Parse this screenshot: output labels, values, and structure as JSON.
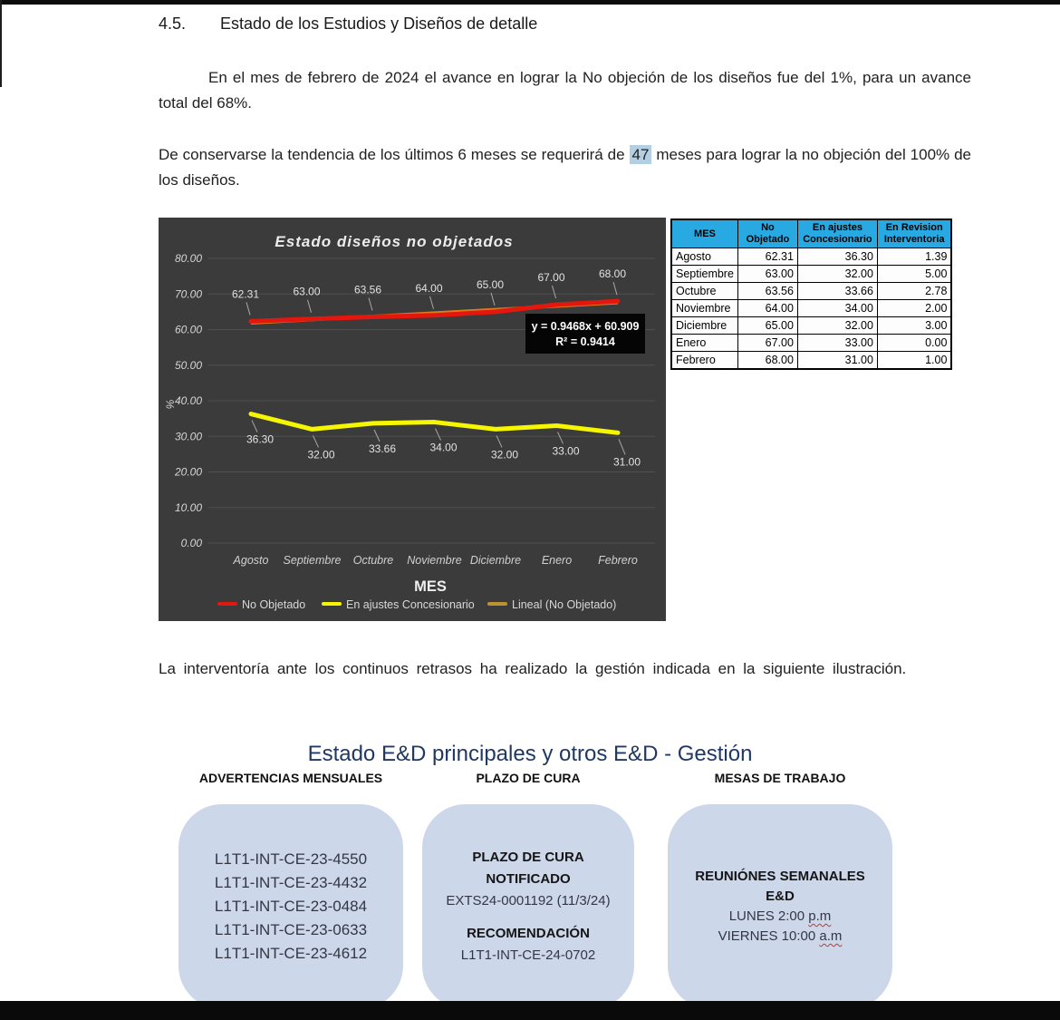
{
  "page": {
    "heading": {
      "number": "4.5.",
      "text": "Estado de los Estudios y Diseños de detalle"
    },
    "paragraphs": {
      "p1": "En el mes de febrero de 2024 el avance en lograr la No objeción de los diseños fue del 1%, para un avance total del 68%.",
      "p2_before": "De conservarse la tendencia de los últimos 6 meses se requerirá de ",
      "p2_highlight": "47",
      "p2_after": " meses para lograr la no objeción del 100% de los diseños.",
      "p3": "La interventoría ante los continuos retrasos ha realizado la gestión indicada en la siguiente ilustración."
    }
  },
  "chart_data": {
    "type": "line",
    "title": "Estado diseños no objetados",
    "xlabel": "MES",
    "ylabel": "%",
    "categories": [
      "Agosto",
      "Septiembre",
      "Octubre",
      "Noviembre",
      "Diciembre",
      "Enero",
      "Febrero"
    ],
    "series": [
      {
        "name": "No Objetado",
        "color": "#E3170D",
        "label_side": "above",
        "values": [
          62.31,
          63.0,
          63.56,
          64.0,
          65.0,
          67.0,
          68.0
        ]
      },
      {
        "name": "En ajustes Concesionario",
        "color": "#F6F600",
        "label_side": "below",
        "values": [
          36.3,
          32.0,
          33.66,
          34.0,
          32.0,
          33.0,
          31.0
        ]
      }
    ],
    "trendline": {
      "name": "Lineal (No Objetado)",
      "color": "#E07B1A",
      "legend_color": "#BD9331",
      "slope": 0.9468,
      "intercept": 60.909,
      "equation": "y = 0.9468x + 60.909",
      "r_squared": "R² = 0.9414"
    },
    "ylim": [
      0,
      80
    ],
    "ytick_step": 10,
    "grid": true,
    "legend_position": "bottom",
    "background": "#3B3B3B"
  },
  "table": {
    "header_bg": "#29A9E1",
    "header_lines": [
      [
        "MES"
      ],
      [
        "No",
        "Objetado"
      ],
      [
        "En ajustes",
        "Concesionario"
      ],
      [
        "En Revision",
        "Interventoria"
      ]
    ],
    "rows": [
      [
        "Agosto",
        "62.31",
        "36.30",
        "1.39"
      ],
      [
        "Septiembre",
        "63.00",
        "32.00",
        "5.00"
      ],
      [
        "Octubre",
        "63.56",
        "33.66",
        "2.78"
      ],
      [
        "Noviembre",
        "64.00",
        "34.00",
        "2.00"
      ],
      [
        "Diciembre",
        "65.00",
        "32.00",
        "3.00"
      ],
      [
        "Enero",
        "67.00",
        "33.00",
        "0.00"
      ],
      [
        "Febrero",
        "68.00",
        "31.00",
        "1.00"
      ]
    ]
  },
  "diagram": {
    "title": "Estado E&D principales y otros E&D - Gestión",
    "title_color": "#1F3864",
    "box_fill": "#CDD7EA",
    "text_color": "#333744",
    "columns": [
      {
        "header": "ADVERTENCIAS MENSUALES",
        "font_size": 17,
        "line_height": 26,
        "lines": [
          {
            "text": "L1T1-INT-CE-23-4550"
          },
          {
            "text": "L1T1-INT-CE-23-4432"
          },
          {
            "text": "L1T1-INT-CE-23-0484"
          },
          {
            "text": "L1T1-INT-CE-23-0633"
          },
          {
            "text": "L1T1-INT-CE-23-4612"
          }
        ]
      },
      {
        "header": "PLAZO DE CURA",
        "font_size": 15,
        "line_height": 24,
        "lines": [
          {
            "text": "PLAZO DE CURA",
            "bold": true
          },
          {
            "text": "NOTIFICADO",
            "bold": true
          },
          {
            "text": "EXTS24-0001192 (11/3/24)"
          },
          {
            "text": ""
          },
          {
            "text": "RECOMENDACIÓN",
            "bold": true
          },
          {
            "text": "L1T1-INT-CE-24-0702"
          }
        ]
      },
      {
        "header": "MESAS DE TRABAJO",
        "font_size": 15,
        "line_height": 22,
        "lines": [
          {
            "text": "REUNIÓNES SEMANALES",
            "bold": true
          },
          {
            "text": "E&D",
            "bold": true
          },
          {
            "text": "LUNES 2:00 ",
            "tail": "p.m"
          },
          {
            "text": "VIERNES 10:00 ",
            "tail": "a.m"
          }
        ]
      }
    ]
  },
  "colors": {
    "highlight": "#B3CFE3",
    "page_background": "#FFFFFF",
    "chart_background": "#3B3B3B"
  }
}
